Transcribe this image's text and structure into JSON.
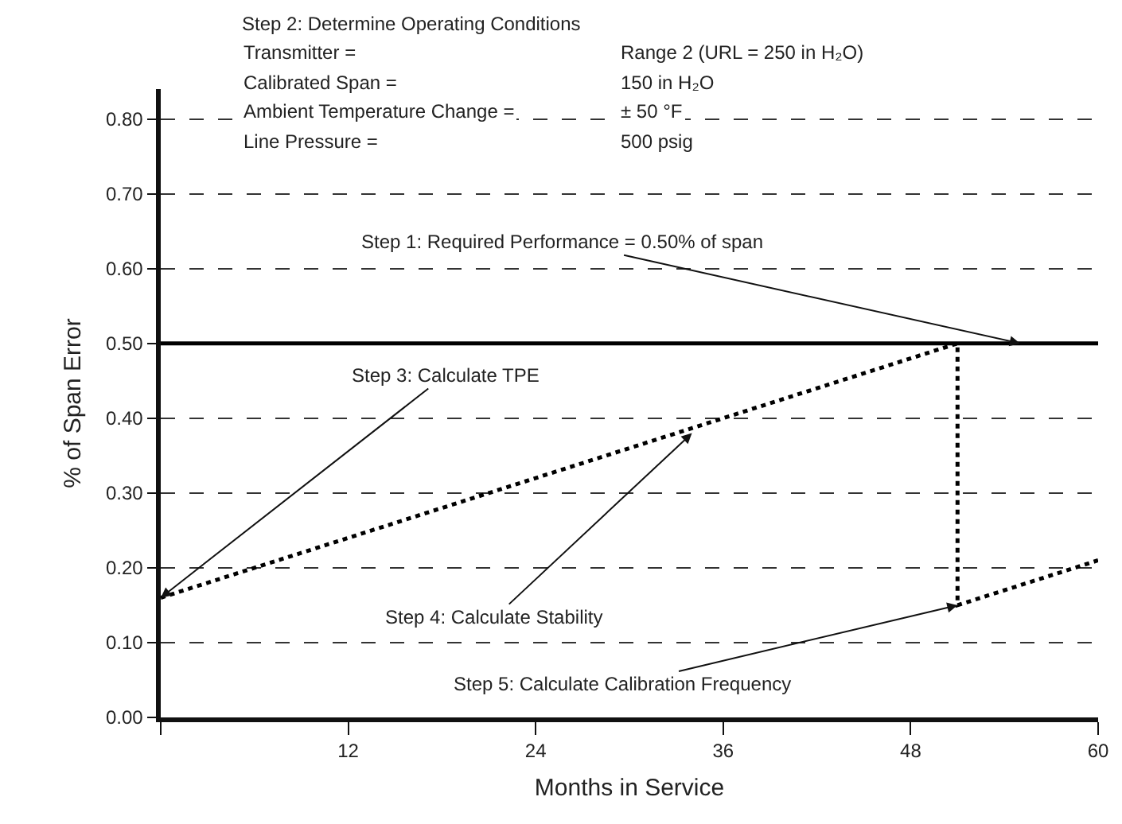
{
  "chart_data": {
    "type": "line",
    "title": "Step 2: Determine Operating Conditions",
    "xlabel": "Months in Service",
    "ylabel": "% of Span Error",
    "x": [
      0,
      51,
      51,
      60
    ],
    "series": [
      {
        "color": "#000000",
        "values": [
          0.16,
          0.5,
          0.15,
          0.21
        ]
      }
    ],
    "xlim": [
      0,
      60
    ],
    "ylim": [
      0,
      0.84
    ],
    "xticks": [
      {
        "value": 0,
        "label": null
      },
      12,
      24,
      36,
      48,
      60
    ],
    "yticks": [
      {
        "value": 0,
        "label": "0.00"
      },
      {
        "value": 0.1,
        "label": "0.10"
      },
      {
        "value": 0.2,
        "label": "0.20"
      },
      {
        "value": 0.3,
        "label": "0.30"
      },
      {
        "value": 0.4,
        "label": "0.40"
      },
      {
        "value": 0.5,
        "label": "0.50"
      },
      {
        "value": 0.6,
        "label": "0.60"
      },
      {
        "value": 0.7,
        "label": "0.70"
      },
      {
        "value": 0.8,
        "label": "0.80"
      }
    ],
    "grid": "y",
    "line_style": "dotted",
    "marker": "none",
    "ref_lines": [
      {
        "axis": "y",
        "value": 0.5,
        "color": "#000000",
        "line_style": "solid"
      }
    ],
    "annotations": [
      "Transmitter =",
      "Range 2 (URL = 250 in H₂O)",
      "Calibrated Span =",
      "150 in H₂O",
      "Ambient Temperature Change =",
      "± 50 °F",
      "Line Pressure =",
      "500 psig",
      {
        "text": "Step 1: Required Performance = 0.50% of span",
        "x": 55,
        "y": 0.5
      },
      {
        "text": "Step 3: Calculate TPE",
        "x": 0,
        "y": 0.16
      },
      {
        "text": "Step 4: Calculate Stability",
        "x": 34,
        "y": 0.38
      },
      {
        "text": "Step 5: Calculate Calibration Frequency",
        "x": 51,
        "y": 0.15
      }
    ]
  }
}
